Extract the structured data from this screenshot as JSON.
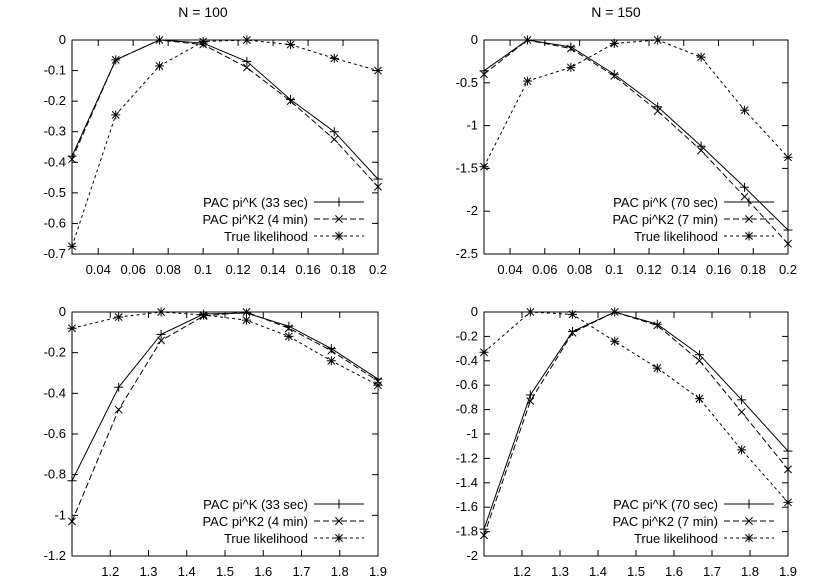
{
  "titles": [
    "N = 100",
    "N = 150"
  ],
  "chart_data": [
    {
      "type": "line",
      "title": "N = 100",
      "xlim": [
        0.025,
        0.2
      ],
      "ylim": [
        -0.7,
        0
      ],
      "xticks": [
        0.04,
        0.06,
        0.08,
        0.1,
        0.12,
        0.14,
        0.16,
        0.18,
        0.2
      ],
      "xtick_labels": [
        "0.04",
        "0.06",
        "0.08",
        "0.1",
        "0.12",
        "0.14",
        "0.16",
        "0.18",
        "0.2"
      ],
      "yticks": [
        0,
        -0.1,
        -0.2,
        -0.3,
        -0.4,
        -0.5,
        -0.6,
        -0.7
      ],
      "ytick_labels": [
        "0",
        "-0.1",
        "-0.2",
        "-0.3",
        "-0.4",
        "-0.5",
        "-0.6",
        "-0.7"
      ],
      "legend": "bottom-right",
      "x": [
        0.025,
        0.05,
        0.075,
        0.1,
        0.125,
        0.15,
        0.175,
        0.2
      ],
      "series": [
        {
          "name": "PAC pi^K (33 sec)",
          "marker": "plus",
          "dash": "solid",
          "values": [
            -0.38,
            -0.065,
            0,
            -0.01,
            -0.07,
            -0.195,
            -0.3,
            -0.455
          ]
        },
        {
          "name": "PAC pi^K2 (4 min)",
          "marker": "x",
          "dash": "dashed",
          "values": [
            -0.39,
            -0.065,
            0,
            -0.015,
            -0.09,
            -0.2,
            -0.325,
            -0.48
          ]
        },
        {
          "name": "True likelihood",
          "marker": "star",
          "dash": "dotted",
          "values": [
            -0.675,
            -0.245,
            -0.085,
            -0.005,
            0,
            -0.015,
            -0.06,
            -0.1
          ]
        }
      ]
    },
    {
      "type": "line",
      "title": "N = 150",
      "xlim": [
        0.025,
        0.2
      ],
      "ylim": [
        -2.5,
        0
      ],
      "xticks": [
        0.04,
        0.06,
        0.08,
        0.1,
        0.12,
        0.14,
        0.16,
        0.18,
        0.2
      ],
      "xtick_labels": [
        "0.04",
        "0.06",
        "0.08",
        "0.1",
        "0.12",
        "0.14",
        "0.16",
        "0.18",
        "0.2"
      ],
      "yticks": [
        0,
        -0.5,
        -1,
        -1.5,
        -2,
        -2.5
      ],
      "ytick_labels": [
        "0",
        "-0.5",
        "-1",
        "-1.5",
        "-2",
        "-2.5"
      ],
      "legend": "bottom-right",
      "x": [
        0.025,
        0.05,
        0.075,
        0.1,
        0.125,
        0.15,
        0.175,
        0.2
      ],
      "series": [
        {
          "name": "PAC pi^K (70 sec)",
          "marker": "plus",
          "dash": "solid",
          "values": [
            -0.36,
            0,
            -0.08,
            -0.4,
            -0.78,
            -1.24,
            -1.72,
            -2.22
          ]
        },
        {
          "name": "PAC pi^K2 (7 min)",
          "marker": "x",
          "dash": "dashed",
          "values": [
            -0.4,
            0,
            -0.1,
            -0.42,
            -0.83,
            -1.29,
            -1.83,
            -2.38
          ]
        },
        {
          "name": "True likelihood",
          "marker": "star",
          "dash": "dotted",
          "values": [
            -1.48,
            -0.48,
            -0.32,
            -0.04,
            0,
            -0.2,
            -0.82,
            -1.37
          ]
        }
      ]
    },
    {
      "type": "line",
      "title": "",
      "xlim": [
        1.1,
        1.9
      ],
      "ylim": [
        -1.2,
        0
      ],
      "xticks": [
        1.2,
        1.3,
        1.4,
        1.5,
        1.6,
        1.7,
        1.8,
        1.9
      ],
      "xtick_labels": [
        "1.2",
        "1.3",
        "1.4",
        "1.5",
        "1.6",
        "1.7",
        "1.8",
        "1.9"
      ],
      "yticks": [
        0,
        -0.2,
        -0.4,
        -0.6,
        -0.8,
        -1,
        -1.2
      ],
      "ytick_labels": [
        "0",
        "-0.2",
        "-0.4",
        "-0.6",
        "-0.8",
        "-1",
        "-1.2"
      ],
      "legend": "bottom-right",
      "x": [
        1.1,
        1.222,
        1.333,
        1.444,
        1.556,
        1.667,
        1.778,
        1.9
      ],
      "series": [
        {
          "name": "PAC pi^K (33 sec)",
          "marker": "plus",
          "dash": "solid",
          "values": [
            -0.83,
            -0.37,
            -0.11,
            -0.01,
            -0.005,
            -0.07,
            -0.18,
            -0.33
          ]
        },
        {
          "name": "PAC pi^K2 (4 min)",
          "marker": "x",
          "dash": "dashed",
          "values": [
            -1.03,
            -0.48,
            -0.14,
            -0.02,
            0,
            -0.08,
            -0.19,
            -0.34
          ]
        },
        {
          "name": "True likelihood",
          "marker": "star",
          "dash": "dotted",
          "values": [
            -0.08,
            -0.025,
            0,
            -0.015,
            -0.04,
            -0.12,
            -0.24,
            -0.36
          ]
        }
      ]
    },
    {
      "type": "line",
      "title": "",
      "xlim": [
        1.1,
        1.9
      ],
      "ylim": [
        -2,
        0
      ],
      "xticks": [
        1.2,
        1.3,
        1.4,
        1.5,
        1.6,
        1.7,
        1.8,
        1.9
      ],
      "xtick_labels": [
        "1.2",
        "1.3",
        "1.4",
        "1.5",
        "1.6",
        "1.7",
        "1.8",
        "1.9"
      ],
      "yticks": [
        0,
        -0.2,
        -0.4,
        -0.6,
        -0.8,
        -1,
        -1.2,
        -1.4,
        -1.6,
        -1.8,
        -2
      ],
      "ytick_labels": [
        "0",
        "-0.2",
        "-0.4",
        "-0.6",
        "-0.8",
        "-1",
        "-1.2",
        "-1.4",
        "-1.6",
        "-1.8",
        "-2"
      ],
      "legend": "bottom-right",
      "x": [
        1.1,
        1.222,
        1.333,
        1.444,
        1.556,
        1.667,
        1.778,
        1.9
      ],
      "series": [
        {
          "name": "PAC pi^K (70 sec)",
          "marker": "plus",
          "dash": "solid",
          "values": [
            -1.78,
            -0.68,
            -0.16,
            0,
            -0.1,
            -0.35,
            -0.72,
            -1.14
          ]
        },
        {
          "name": "PAC pi^K2 (7 min)",
          "marker": "x",
          "dash": "dashed",
          "values": [
            -1.83,
            -0.73,
            -0.17,
            0,
            -0.11,
            -0.4,
            -0.82,
            -1.29
          ]
        },
        {
          "name": "True likelihood",
          "marker": "star",
          "dash": "dotted",
          "values": [
            -0.33,
            0,
            -0.02,
            -0.24,
            -0.46,
            -0.71,
            -1.13,
            -1.56
          ]
        }
      ]
    }
  ]
}
